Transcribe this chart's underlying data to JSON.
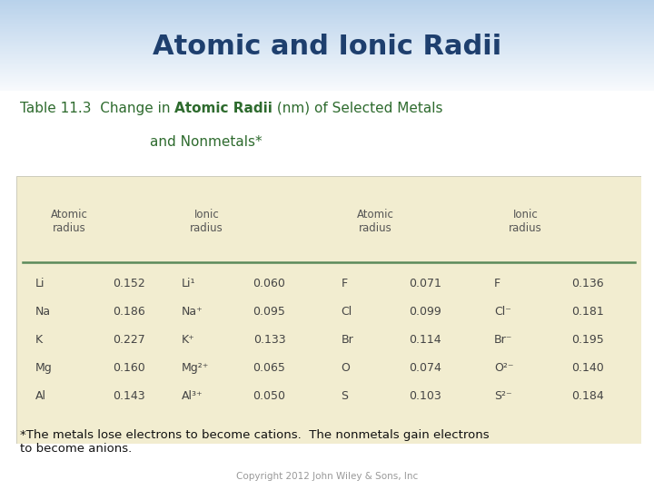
{
  "title": "Atomic and Ionic Radii",
  "title_color": "#1E3F6E",
  "title_fontsize": 22,
  "table_title_color": "#2E6B2E",
  "table_bg_color": "#F2EDD0",
  "header_line_color": "#5B8A5A",
  "metals": [
    [
      "Li",
      "0.152",
      "Li¹",
      "0.060"
    ],
    [
      "Na",
      "0.186",
      "Na⁺",
      "0.095"
    ],
    [
      "K",
      "0.227",
      "K⁺",
      "0.133"
    ],
    [
      "Mg",
      "0.160",
      "Mg²⁺",
      "0.065"
    ],
    [
      "Al",
      "0.143",
      "Al³⁺",
      "0.050"
    ]
  ],
  "nonmetals": [
    [
      "F",
      "0.071",
      "F",
      "0.136"
    ],
    [
      "Cl",
      "0.099",
      "Cl⁻",
      "0.181"
    ],
    [
      "Br",
      "0.114",
      "Br⁻",
      "0.195"
    ],
    [
      "O",
      "0.074",
      "O²⁻",
      "0.140"
    ],
    [
      "S",
      "0.103",
      "S²⁻",
      "0.184"
    ]
  ],
  "col_headers": [
    "Atomic\nradius",
    "Ionic\nradius",
    "Atomic\nradius",
    "Ionic\nradius"
  ],
  "footnote": "*The metals lose electrons to become cations.  The nonmetals gain electrons\nto become anions.",
  "copyright": "Copyright 2012 John Wiley & Sons, Inc",
  "data_color": "#444444",
  "header_color": "#555555"
}
